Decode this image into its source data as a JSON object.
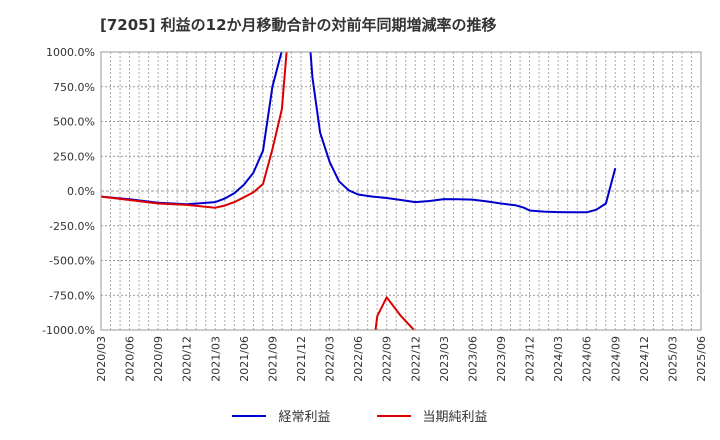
{
  "chart_data": {
    "type": "line",
    "title": "[7205]  利益の12か月移動合計の対前年同期増減率の推移",
    "xlabel": "",
    "ylabel": "",
    "ylim": [
      -1000,
      1000
    ],
    "yticks": [
      "1000.0%",
      "750.0%",
      "500.0%",
      "250.0%",
      "0.0%",
      "-250.0%",
      "-500.0%",
      "-750.0%",
      "-1000.0%"
    ],
    "ytick_values": [
      1000,
      750,
      500,
      250,
      0,
      -250,
      -500,
      -750,
      -1000
    ],
    "x_categories": [
      "2020/03",
      "2020/06",
      "2020/09",
      "2020/12",
      "2021/03",
      "2021/06",
      "2021/09",
      "2021/12",
      "2022/03",
      "2022/06",
      "2022/09",
      "2022/12",
      "2023/03",
      "2023/06",
      "2023/09",
      "2023/12",
      "2024/03",
      "2024/06",
      "2024/09",
      "2024/12",
      "2025/03",
      "2025/06"
    ],
    "grid": true,
    "legend_position": "bottom",
    "series": [
      {
        "name": "経常利益",
        "color": "#0000cc",
        "points": [
          [
            0,
            -40
          ],
          [
            1,
            -60
          ],
          [
            2,
            -85
          ],
          [
            3,
            -95
          ],
          [
            4,
            -80
          ],
          [
            4.33,
            -55
          ],
          [
            4.67,
            -15
          ],
          [
            5,
            45
          ],
          [
            5.33,
            130
          ],
          [
            5.67,
            290
          ],
          [
            6,
            750
          ],
          [
            6.33,
            1010
          ],
          [
            7.33,
            1010
          ],
          [
            7.4,
            820
          ],
          [
            7.67,
            420
          ],
          [
            8,
            210
          ],
          [
            8.33,
            70
          ],
          [
            8.67,
            5
          ],
          [
            9,
            -25
          ],
          [
            9.5,
            -40
          ],
          [
            10,
            -50
          ],
          [
            10.5,
            -65
          ],
          [
            11,
            -80
          ],
          [
            11.5,
            -72
          ],
          [
            12,
            -58
          ],
          [
            12.5,
            -60
          ],
          [
            13,
            -62
          ],
          [
            13.5,
            -75
          ],
          [
            14,
            -90
          ],
          [
            14.5,
            -102
          ],
          [
            14.8,
            -120
          ],
          [
            15,
            -140
          ],
          [
            15.5,
            -148
          ],
          [
            16,
            -152
          ],
          [
            16.5,
            -153
          ],
          [
            17,
            -153
          ],
          [
            17.33,
            -135
          ],
          [
            17.67,
            -90
          ],
          [
            18,
            165
          ]
        ]
      },
      {
        "name": "当期純利益",
        "color": "#dd0000",
        "points_segments": [
          [
            [
              0,
              -40
            ],
            [
              1,
              -65
            ],
            [
              2,
              -90
            ],
            [
              3,
              -100
            ],
            [
              4,
              -120
            ],
            [
              4.33,
              -105
            ],
            [
              4.67,
              -80
            ],
            [
              5,
              -45
            ],
            [
              5.33,
              -10
            ],
            [
              5.67,
              50
            ],
            [
              6,
              300
            ],
            [
              6.33,
              590
            ],
            [
              6.5,
              1010
            ]
          ],
          [
            [
              9.6,
              -1010
            ],
            [
              9.67,
              -900
            ],
            [
              10,
              -765
            ],
            [
              10.5,
              -900
            ],
            [
              11,
              -1010
            ]
          ]
        ]
      }
    ]
  }
}
